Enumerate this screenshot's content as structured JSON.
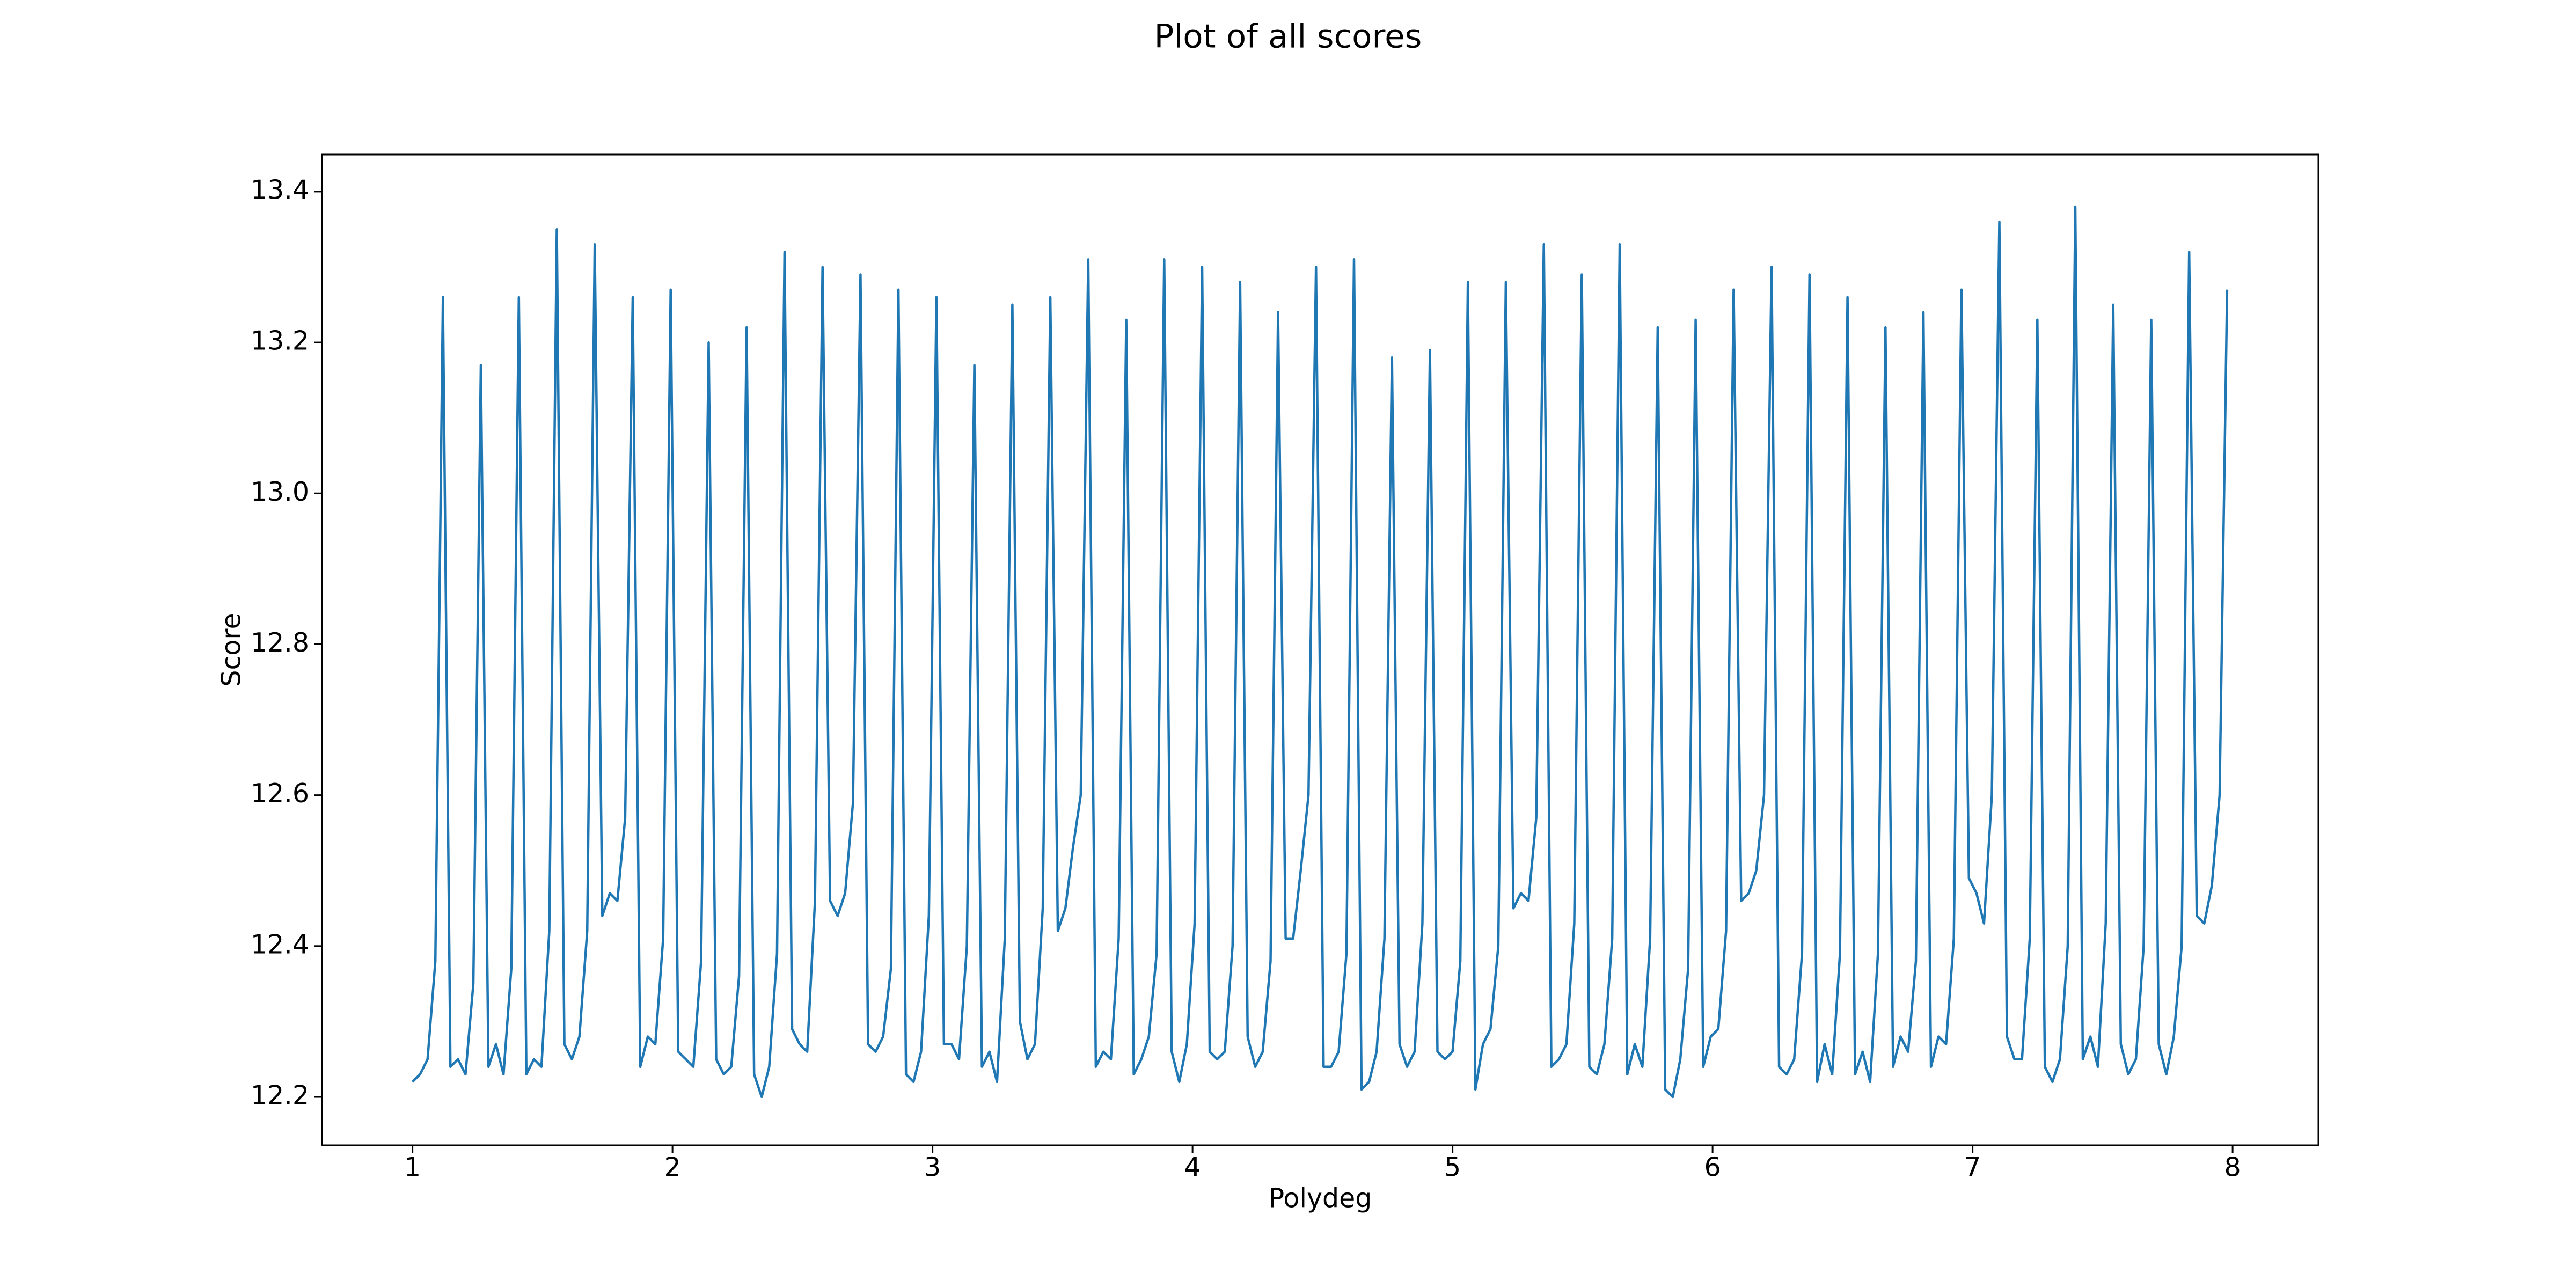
{
  "chart_data": {
    "type": "line",
    "title": "Plot of all scores",
    "x_label": "Polydeg",
    "y_label": "Score",
    "color": "#1f77b4",
    "x": [
      1.0,
      1.029,
      1.058,
      1.088,
      1.117,
      1.146,
      1.175,
      1.204,
      1.234,
      1.263,
      1.292,
      1.321,
      1.35,
      1.38,
      1.409,
      1.438,
      1.467,
      1.496,
      1.526,
      1.555,
      1.584,
      1.613,
      1.642,
      1.672,
      1.701,
      1.73,
      1.759,
      1.788,
      1.818,
      1.847,
      1.876,
      1.905,
      1.934,
      1.964,
      1.993,
      2.022,
      2.051,
      2.08,
      2.11,
      2.139,
      2.168,
      2.197,
      2.226,
      2.256,
      2.285,
      2.314,
      2.343,
      2.372,
      2.402,
      2.431,
      2.46,
      2.489,
      2.518,
      2.548,
      2.577,
      2.606,
      2.635,
      2.664,
      2.694,
      2.723,
      2.752,
      2.781,
      2.81,
      2.84,
      2.869,
      2.898,
      2.927,
      2.956,
      2.986,
      3.015,
      3.044,
      3.073,
      3.102,
      3.132,
      3.161,
      3.19,
      3.219,
      3.248,
      3.278,
      3.307,
      3.336,
      3.365,
      3.394,
      3.424,
      3.453,
      3.482,
      3.511,
      3.54,
      3.57,
      3.599,
      3.628,
      3.657,
      3.686,
      3.716,
      3.745,
      3.774,
      3.803,
      3.832,
      3.862,
      3.891,
      3.92,
      3.949,
      3.978,
      4.008,
      4.037,
      4.066,
      4.095,
      4.124,
      4.154,
      4.183,
      4.212,
      4.241,
      4.27,
      4.3,
      4.329,
      4.358,
      4.387,
      4.416,
      4.446,
      4.475,
      4.504,
      4.533,
      4.562,
      4.592,
      4.621,
      4.65,
      4.679,
      4.708,
      4.738,
      4.767,
      4.796,
      4.825,
      4.854,
      4.884,
      4.913,
      4.942,
      4.971,
      5.0,
      5.03,
      5.059,
      5.088,
      5.117,
      5.146,
      5.176,
      5.205,
      5.234,
      5.263,
      5.292,
      5.322,
      5.351,
      5.38,
      5.409,
      5.438,
      5.468,
      5.497,
      5.526,
      5.555,
      5.584,
      5.614,
      5.643,
      5.672,
      5.701,
      5.73,
      5.76,
      5.789,
      5.818,
      5.847,
      5.876,
      5.906,
      5.935,
      5.964,
      5.993,
      6.022,
      6.052,
      6.081,
      6.11,
      6.139,
      6.168,
      6.198,
      6.227,
      6.256,
      6.285,
      6.314,
      6.344,
      6.373,
      6.402,
      6.431,
      6.46,
      6.49,
      6.519,
      6.548,
      6.577,
      6.606,
      6.636,
      6.665,
      6.694,
      6.723,
      6.752,
      6.782,
      6.811,
      6.84,
      6.869,
      6.898,
      6.928,
      6.957,
      6.986,
      7.015,
      7.044,
      7.074,
      7.103,
      7.132,
      7.161,
      7.19,
      7.22,
      7.249,
      7.278,
      7.307,
      7.336,
      7.366,
      7.395,
      7.424,
      7.453,
      7.482,
      7.512,
      7.541,
      7.57,
      7.599,
      7.628,
      7.658,
      7.687,
      7.716,
      7.745,
      7.774,
      7.804,
      7.833,
      7.862,
      7.891,
      7.92,
      7.95,
      7.979
    ],
    "values": [
      12.22,
      12.23,
      12.25,
      12.38,
      13.26,
      12.24,
      12.25,
      12.23,
      12.35,
      13.17,
      12.24,
      12.27,
      12.23,
      12.37,
      13.26,
      12.23,
      12.25,
      12.24,
      12.42,
      13.35,
      12.27,
      12.25,
      12.28,
      12.42,
      13.33,
      12.44,
      12.47,
      12.46,
      12.57,
      13.26,
      12.24,
      12.28,
      12.27,
      12.41,
      13.27,
      12.26,
      12.25,
      12.24,
      12.38,
      13.2,
      12.25,
      12.23,
      12.24,
      12.36,
      13.22,
      12.23,
      12.2,
      12.24,
      12.39,
      13.32,
      12.29,
      12.27,
      12.26,
      12.46,
      13.3,
      12.46,
      12.44,
      12.47,
      12.59,
      13.29,
      12.27,
      12.26,
      12.28,
      12.37,
      13.27,
      12.23,
      12.22,
      12.26,
      12.44,
      13.26,
      12.27,
      12.27,
      12.25,
      12.4,
      13.17,
      12.24,
      12.26,
      12.22,
      12.41,
      13.25,
      12.3,
      12.25,
      12.27,
      12.45,
      13.26,
      12.42,
      12.45,
      12.53,
      12.6,
      13.31,
      12.24,
      12.26,
      12.25,
      12.41,
      13.23,
      12.23,
      12.25,
      12.28,
      12.39,
      13.31,
      12.26,
      12.22,
      12.27,
      12.43,
      13.3,
      12.26,
      12.25,
      12.26,
      12.4,
      13.28,
      12.28,
      12.24,
      12.26,
      12.38,
      13.24,
      12.41,
      12.41,
      12.5,
      12.6,
      13.3,
      12.24,
      12.24,
      12.26,
      12.39,
      13.31,
      12.21,
      12.22,
      12.26,
      12.41,
      13.18,
      12.27,
      12.24,
      12.26,
      12.43,
      13.19,
      12.26,
      12.25,
      12.26,
      12.38,
      13.28,
      12.21,
      12.27,
      12.29,
      12.4,
      13.28,
      12.45,
      12.47,
      12.46,
      12.57,
      13.33,
      12.24,
      12.25,
      12.27,
      12.43,
      13.29,
      12.24,
      12.23,
      12.27,
      12.41,
      13.33,
      12.23,
      12.27,
      12.24,
      12.41,
      13.22,
      12.21,
      12.2,
      12.25,
      12.37,
      13.23,
      12.24,
      12.28,
      12.29,
      12.42,
      13.27,
      12.46,
      12.47,
      12.5,
      12.6,
      13.3,
      12.24,
      12.23,
      12.25,
      12.39,
      13.29,
      12.22,
      12.27,
      12.23,
      12.39,
      13.26,
      12.23,
      12.26,
      12.22,
      12.39,
      13.22,
      12.24,
      12.28,
      12.26,
      12.38,
      13.24,
      12.24,
      12.28,
      12.27,
      12.41,
      13.27,
      12.49,
      12.47,
      12.43,
      12.6,
      13.36,
      12.28,
      12.25,
      12.25,
      12.41,
      13.23,
      12.24,
      12.22,
      12.25,
      12.4,
      13.38,
      12.25,
      12.28,
      12.24,
      12.43,
      13.25,
      12.27,
      12.23,
      12.25,
      12.4,
      13.23,
      12.27,
      12.23,
      12.28,
      12.4,
      13.32,
      12.44,
      12.43,
      12.48,
      12.6,
      13.27
    ],
    "xlim": [
      0.652,
      8.33
    ],
    "ylim": [
      12.136,
      13.449
    ],
    "xticks": [
      1,
      2,
      3,
      4,
      5,
      6,
      7,
      8
    ],
    "yticks": [
      12.2,
      12.4,
      12.6,
      12.8,
      {
        "value": 13,
        "label": "13.0"
      },
      13.2,
      13.4
    ]
  }
}
